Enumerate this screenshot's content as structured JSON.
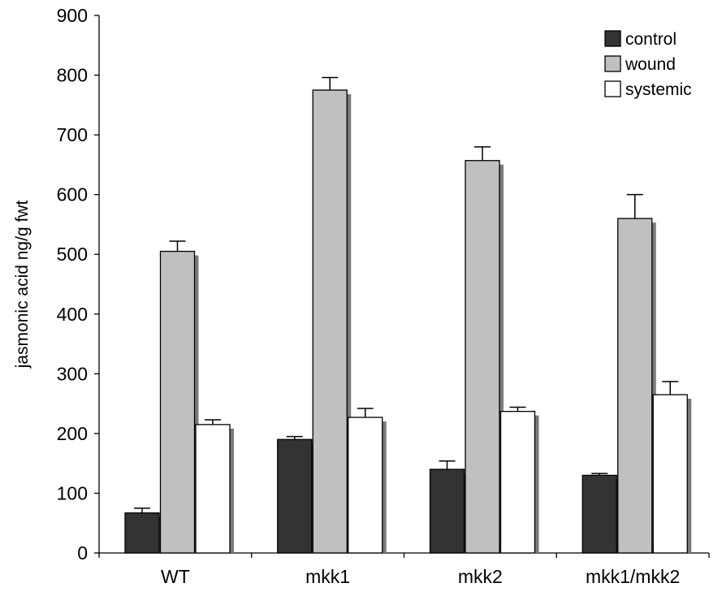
{
  "chart_data": {
    "type": "bar",
    "title": "",
    "xlabel": "",
    "ylabel": "jasmonic acid ng/g fwt",
    "ylim": [
      0,
      900
    ],
    "yticks": [
      0,
      100,
      200,
      300,
      400,
      500,
      600,
      700,
      800,
      900
    ],
    "categories": [
      "WT",
      "mkk1",
      "mkk2",
      "mkk1/mkk2"
    ],
    "series": [
      {
        "name": "control",
        "color": "#333333",
        "values": [
          67,
          190,
          140,
          130
        ],
        "errors": [
          8,
          5,
          14,
          3
        ]
      },
      {
        "name": "wound",
        "color": "#c0c0c0",
        "values": [
          505,
          775,
          657,
          560
        ],
        "errors": [
          17,
          21,
          23,
          40
        ]
      },
      {
        "name": "systemic",
        "color": "#ffffff",
        "values": [
          215,
          227,
          237,
          265
        ],
        "errors": [
          8,
          15,
          7,
          22
        ]
      }
    ],
    "legend_position": "top-right",
    "grid": false
  }
}
